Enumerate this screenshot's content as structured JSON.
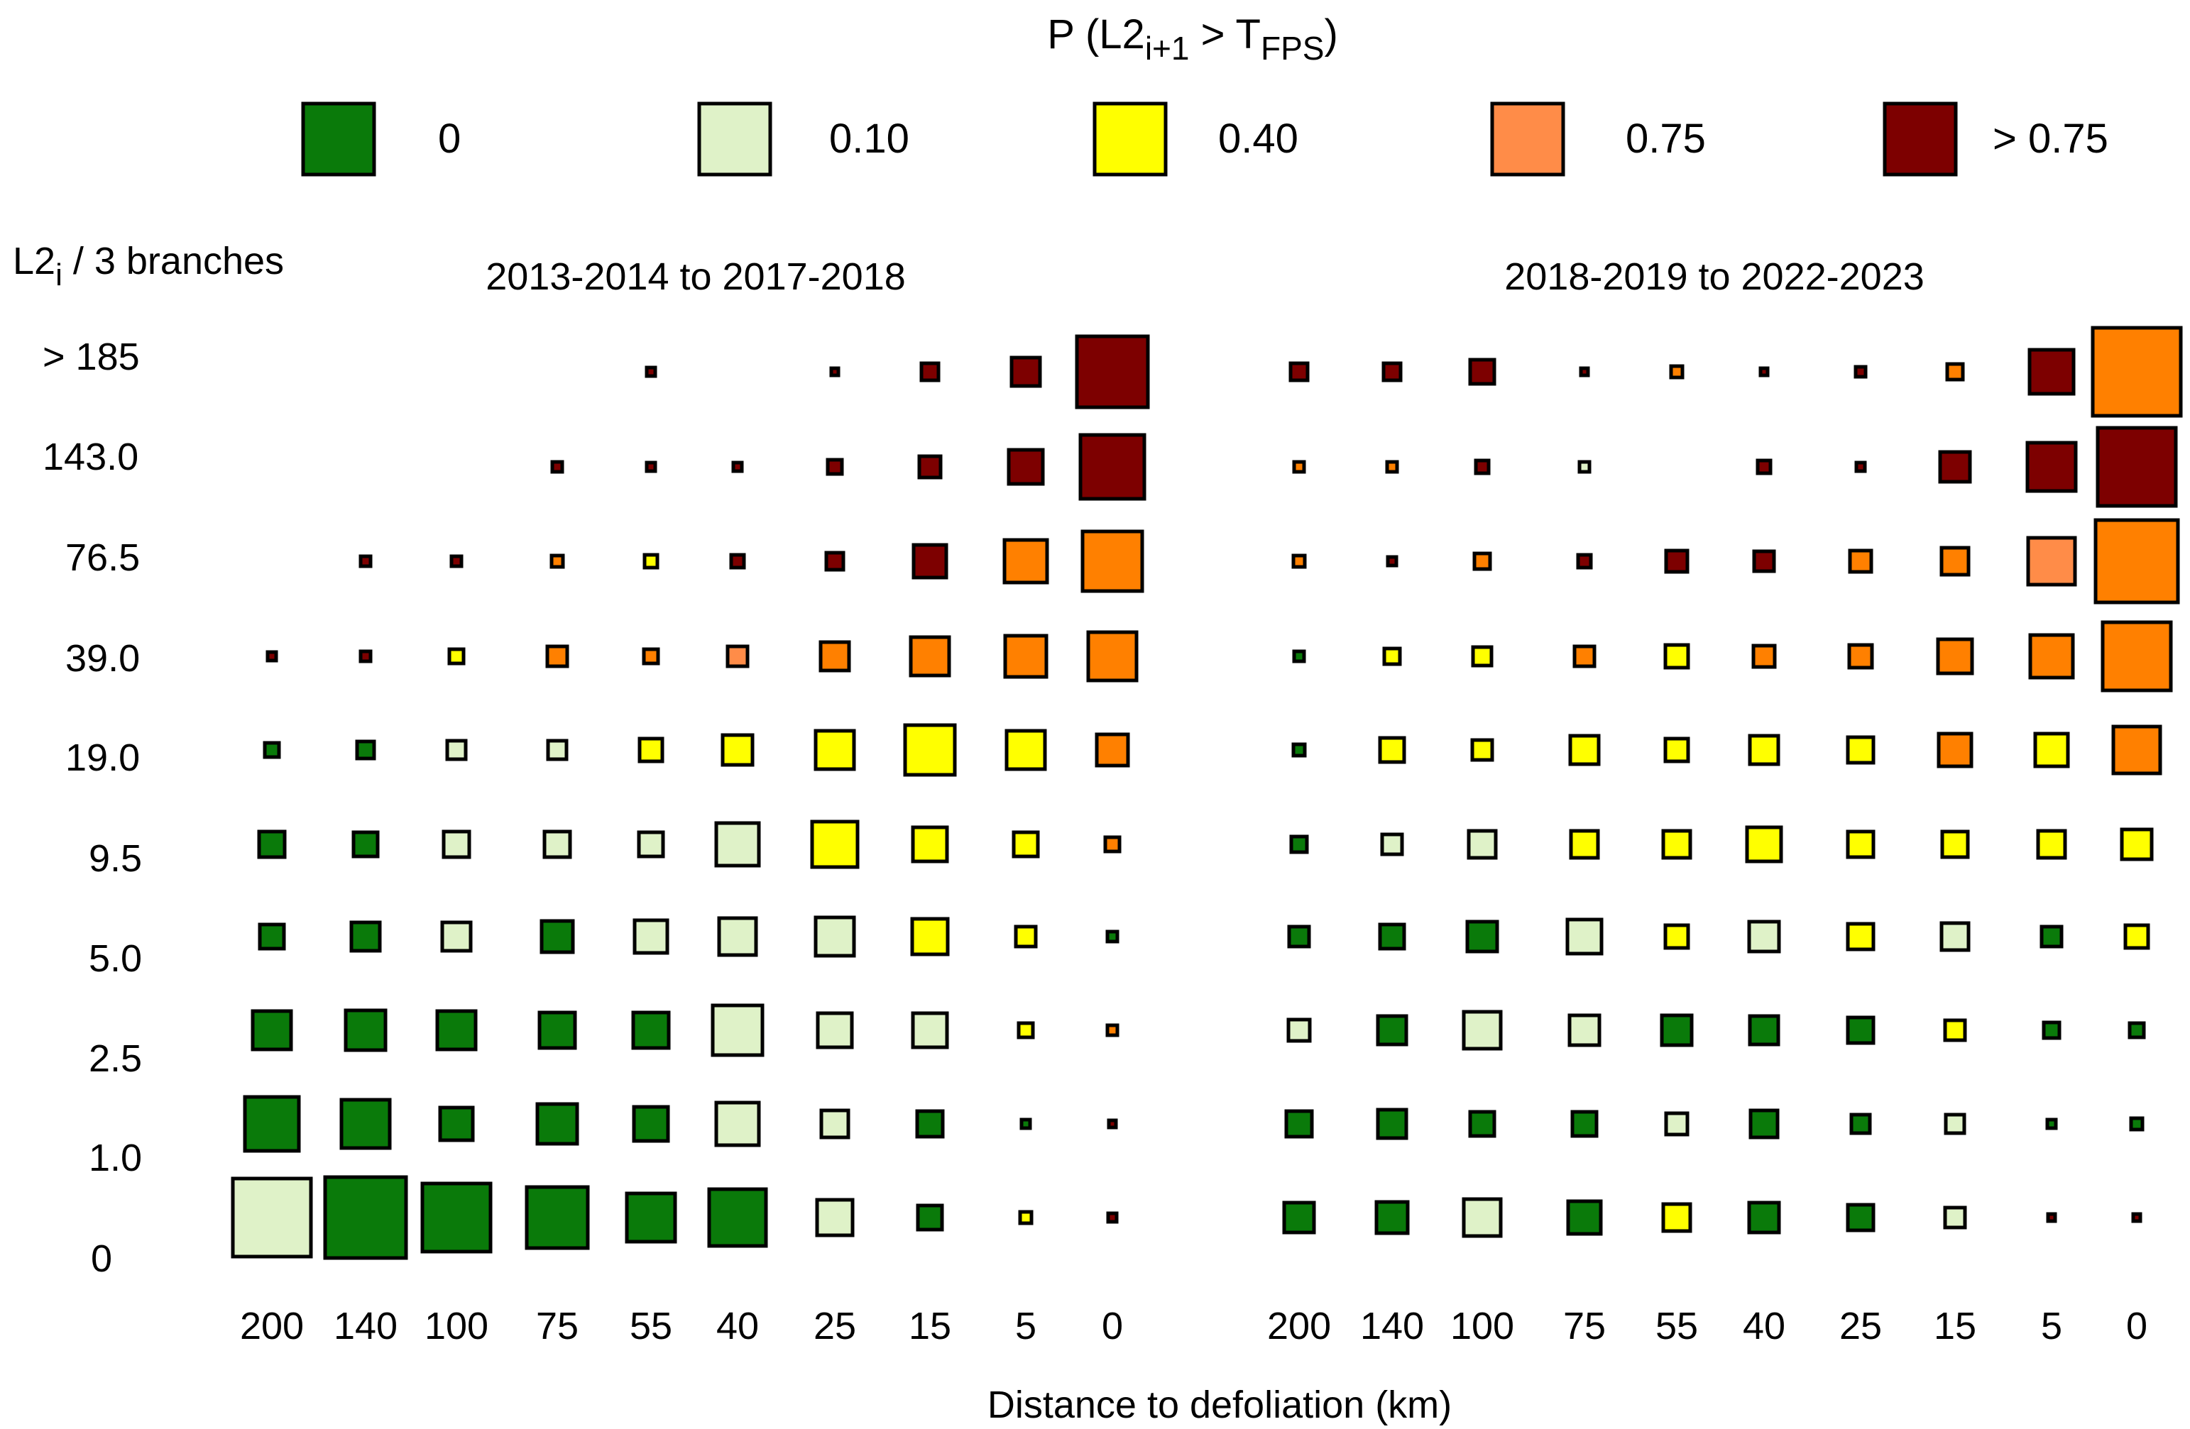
{
  "chart_data": {
    "type": "heatmap",
    "title": "P (L2",
    "title_sub1": "i+1",
    "title_mid": " > T",
    "title_sub2": "FPS",
    "title_end": ")",
    "ylabel": "L2",
    "ylabel_sub": "i",
    "ylabel_rest": " / 3 branches",
    "xlabel": "Distance to defoliation (km)",
    "x_ticks": [
      "200",
      "140",
      "100",
      "75",
      "55",
      "40",
      "25",
      "15",
      "5",
      "0"
    ],
    "y_ticks": [
      "> 185",
      "143.0",
      "76.5",
      "39.0",
      "19.0",
      "9.5",
      "5.0",
      "2.5",
      "1.0",
      "0"
    ],
    "legend": [
      {
        "label": "0",
        "color": "#0a7a0a"
      },
      {
        "label": "0.10",
        "color": "#dff2c8"
      },
      {
        "label": "0.40",
        "color": "#ffff00"
      },
      {
        "label": "0.75",
        "color": "#ff8c48"
      },
      {
        "label": "> 0.75",
        "color": "#7d0000"
      }
    ],
    "colors": {
      "G": "#0a7a0a",
      "L": "#dff2c8",
      "Y": "#ffff00",
      "O": "#ff8000",
      "S": "#ff8c48",
      "D": "#7d0000"
    },
    "panels": [
      {
        "title": "2013-2014 to 2017-2018",
        "cells": [
          [
            null,
            null,
            null,
            null,
            [
              "D",
              6
            ],
            null,
            [
              "D",
              5
            ],
            [
              "D",
              12
            ],
            [
              "D",
              20
            ],
            [
              "D",
              50
            ]
          ],
          [
            null,
            null,
            null,
            [
              "D",
              7
            ],
            [
              "D",
              6
            ],
            [
              "D",
              6
            ],
            [
              "D",
              10
            ],
            [
              "D",
              15
            ],
            [
              "D",
              24
            ],
            [
              "D",
              45
            ]
          ],
          [
            null,
            [
              "D",
              7
            ],
            [
              "D",
              7
            ],
            [
              "O",
              8
            ],
            [
              "Y",
              9
            ],
            [
              "D",
              9
            ],
            [
              "D",
              12
            ],
            [
              "D",
              23
            ],
            [
              "O",
              30
            ],
            [
              "O",
              42
            ]
          ],
          [
            [
              "D",
              6
            ],
            [
              "D",
              7
            ],
            [
              "Y",
              10
            ],
            [
              "O",
              14
            ],
            [
              "O",
              10
            ],
            [
              "S",
              14
            ],
            [
              "O",
              20
            ],
            [
              "O",
              27
            ],
            [
              "O",
              29
            ],
            [
              "O",
              34
            ]
          ],
          [
            [
              "G",
              10
            ],
            [
              "G",
              12
            ],
            [
              "L",
              13
            ],
            [
              "L",
              13
            ],
            [
              "Y",
              16
            ],
            [
              "Y",
              21
            ],
            [
              "Y",
              27
            ],
            [
              "Y",
              35
            ],
            [
              "Y",
              27
            ],
            [
              "O",
              22
            ]
          ],
          [
            [
              "G",
              18
            ],
            [
              "G",
              17
            ],
            [
              "L",
              18
            ],
            [
              "L",
              18
            ],
            [
              "L",
              17
            ],
            [
              "L",
              30
            ],
            [
              "Y",
              32
            ],
            [
              "Y",
              24
            ],
            [
              "Y",
              17
            ],
            [
              "O",
              10
            ]
          ],
          [
            [
              "G",
              17
            ],
            [
              "G",
              20
            ],
            [
              "L",
              20
            ],
            [
              "G",
              22
            ],
            [
              "L",
              23
            ],
            [
              "L",
              26
            ],
            [
              "L",
              27
            ],
            [
              "Y",
              25
            ],
            [
              "Y",
              14
            ],
            [
              "G",
              7
            ]
          ],
          [
            [
              "G",
              27
            ],
            [
              "G",
              28
            ],
            [
              "G",
              27
            ],
            [
              "G",
              25
            ],
            [
              "G",
              25
            ],
            [
              "L",
              35
            ],
            [
              "L",
              24
            ],
            [
              "L",
              24
            ],
            [
              "Y",
              10
            ],
            [
              "O",
              7
            ]
          ],
          [
            [
              "G",
              38
            ],
            [
              "G",
              34
            ],
            [
              "G",
              23
            ],
            [
              "G",
              28
            ],
            [
              "G",
              24
            ],
            [
              "L",
              30
            ],
            [
              "L",
              19
            ],
            [
              "G",
              18
            ],
            [
              "G",
              6
            ],
            [
              "D",
              5
            ]
          ],
          [
            [
              "L",
              55
            ],
            [
              "G",
              57
            ],
            [
              "G",
              48
            ],
            [
              "G",
              43
            ],
            [
              "G",
              34
            ],
            [
              "G",
              40
            ],
            [
              "L",
              25
            ],
            [
              "G",
              17
            ],
            [
              "Y",
              8
            ],
            [
              "D",
              6
            ]
          ]
        ]
      },
      {
        "title": "2018-2019 to 2022-2023",
        "cells": [
          [
            [
              "D",
              12
            ],
            [
              "D",
              12
            ],
            [
              "D",
              17
            ],
            [
              "D",
              5
            ],
            [
              "O",
              8
            ],
            [
              "D",
              5
            ],
            [
              "D",
              7
            ],
            [
              "O",
              11
            ],
            [
              "D",
              31
            ],
            [
              "O",
              62
            ]
          ],
          [
            [
              "O",
              7
            ],
            [
              "O",
              7
            ],
            [
              "D",
              9
            ],
            [
              "L",
              7
            ],
            null,
            [
              "D",
              9
            ],
            [
              "D",
              6
            ],
            [
              "D",
              21
            ],
            [
              "D",
              34
            ],
            [
              "D",
              55
            ]
          ],
          [
            [
              "O",
              8
            ],
            [
              "D",
              6
            ],
            [
              "O",
              11
            ],
            [
              "D",
              9
            ],
            [
              "D",
              15
            ],
            [
              "D",
              14
            ],
            [
              "O",
              15
            ],
            [
              "O",
              19
            ],
            [
              "S",
              33
            ],
            [
              "O",
              58
            ]
          ],
          [
            [
              "G",
              7
            ],
            [
              "Y",
              11
            ],
            [
              "Y",
              13
            ],
            [
              "O",
              14
            ],
            [
              "Y",
              16
            ],
            [
              "O",
              15
            ],
            [
              "O",
              16
            ],
            [
              "O",
              24
            ],
            [
              "O",
              30
            ],
            [
              "O",
              48
            ]
          ],
          [
            [
              "G",
              8
            ],
            [
              "Y",
              17
            ],
            [
              "Y",
              14
            ],
            [
              "Y",
              20
            ],
            [
              "Y",
              16
            ],
            [
              "Y",
              20
            ],
            [
              "Y",
              18
            ],
            [
              "O",
              23
            ],
            [
              "Y",
              23
            ],
            [
              "O",
              33
            ]
          ],
          [
            [
              "G",
              11
            ],
            [
              "L",
              14
            ],
            [
              "L",
              19
            ],
            [
              "Y",
              19
            ],
            [
              "Y",
              19
            ],
            [
              "Y",
              24
            ],
            [
              "Y",
              18
            ],
            [
              "Y",
              18
            ],
            [
              "Y",
              19
            ],
            [
              "Y",
              21
            ]
          ],
          [
            [
              "G",
              14
            ],
            [
              "G",
              17
            ],
            [
              "G",
              21
            ],
            [
              "L",
              24
            ],
            [
              "Y",
              16
            ],
            [
              "L",
              21
            ],
            [
              "Y",
              18
            ],
            [
              "L",
              19
            ],
            [
              "G",
              14
            ],
            [
              "Y",
              16
            ]
          ],
          [
            [
              "L",
              15
            ],
            [
              "G",
              20
            ],
            [
              "L",
              26
            ],
            [
              "L",
              21
            ],
            [
              "G",
              21
            ],
            [
              "G",
              20
            ],
            [
              "G",
              18
            ],
            [
              "Y",
              14
            ],
            [
              "G",
              11
            ],
            [
              "G",
              10
            ]
          ],
          [
            [
              "G",
              18
            ],
            [
              "G",
              20
            ],
            [
              "G",
              17
            ],
            [
              "G",
              17
            ],
            [
              "L",
              15
            ],
            [
              "G",
              19
            ],
            [
              "G",
              13
            ],
            [
              "L",
              13
            ],
            [
              "G",
              6
            ],
            [
              "G",
              8
            ]
          ],
          [
            [
              "G",
              21
            ],
            [
              "G",
              22
            ],
            [
              "L",
              26
            ],
            [
              "G",
              23
            ],
            [
              "Y",
              19
            ],
            [
              "G",
              21
            ],
            [
              "G",
              18
            ],
            [
              "L",
              14
            ],
            [
              "D",
              5
            ],
            [
              "D",
              5
            ]
          ]
        ]
      }
    ]
  }
}
